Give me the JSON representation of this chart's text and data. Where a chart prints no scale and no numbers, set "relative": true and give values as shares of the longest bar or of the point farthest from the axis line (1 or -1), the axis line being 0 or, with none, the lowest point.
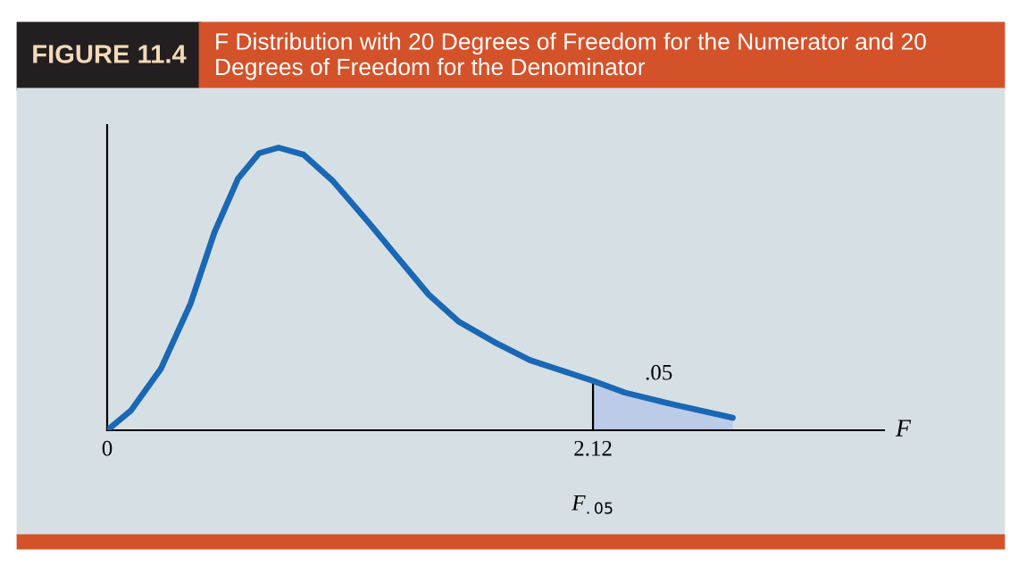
{
  "chart_data": {
    "type": "line",
    "title": "FIGURE 11.4",
    "subtitle": "F Distribution with 20 Degrees of Freedom for the Numerator and 20 Degrees of Freedom for the Denominator",
    "xlabel": "F",
    "relative": true,
    "xlim": [
      0,
      3.39
    ],
    "xticks": [
      0,
      2.12
    ],
    "ref_lines": [
      {
        "axis": "x",
        "value": 2.12,
        "label": "F$_{.05}$",
        "color": "#000000"
      }
    ],
    "tick_labels": "x",
    "grid": false,
    "legend": false,
    "series": [
      {
        "color": "#1a68b5",
        "x": [
          0,
          0.104,
          0.234,
          0.364,
          0.468,
          0.571,
          0.663,
          0.748,
          0.857,
          0.987,
          1.143,
          1.273,
          1.403,
          1.533,
          1.689,
          1.845,
          2.12,
          2.26,
          2.44,
          2.73
        ],
        "values": [
          0,
          0.07,
          0.217,
          0.448,
          0.7,
          0.89,
          0.98,
          1,
          0.975,
          0.88,
          0.733,
          0.606,
          0.48,
          0.385,
          0.312,
          0.248,
          0.175,
          0.133,
          0.097,
          0.044
        ]
      },
      {
        "type": "area",
        "color": "#bccbe8",
        "x": [
          2.12,
          2.26,
          2.44,
          2.73
        ],
        "values": [
          0.175,
          0.133,
          0.097,
          0.044
        ]
      }
    ],
    "annotations": [
      ".05"
    ]
  }
}
